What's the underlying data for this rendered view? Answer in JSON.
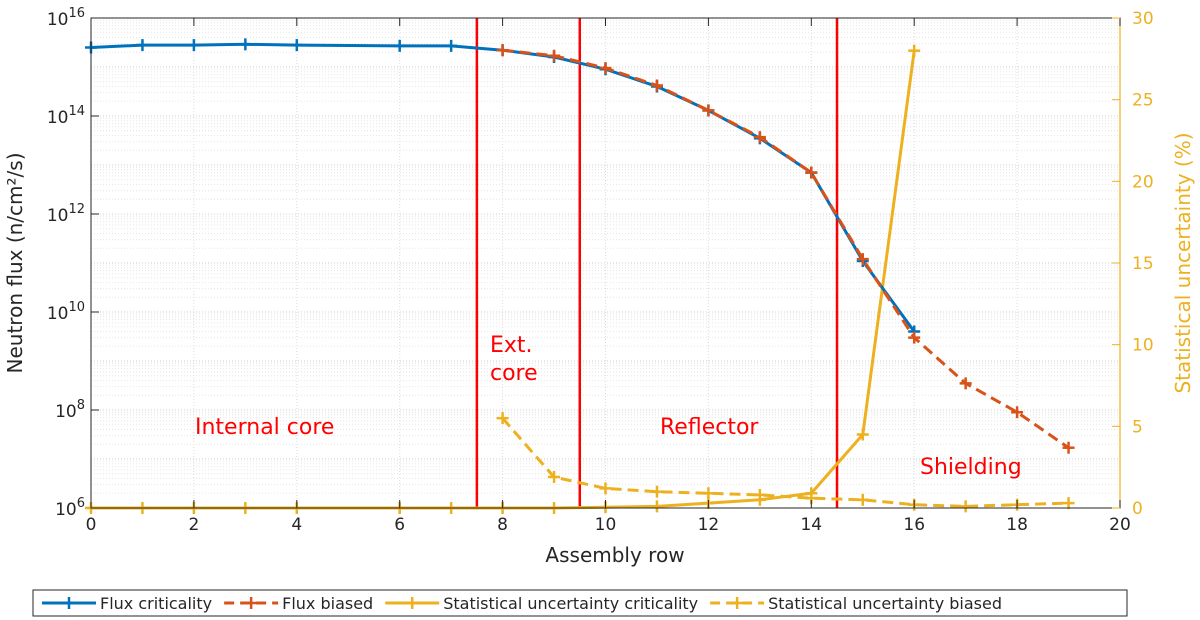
{
  "chart_data": {
    "type": "line",
    "xlabel": "Assembly row",
    "ylabel_left": "Neutron flux (n/cm²/s)",
    "ylabel_right": "Statistical uncertainty (%)",
    "xlim": [
      0,
      20
    ],
    "ylim_left": [
      1000000.0,
      1e+16
    ],
    "ylim_right": [
      0,
      30
    ],
    "yscale_left": "log",
    "grid": true,
    "x_ticks": [
      "0",
      "2",
      "4",
      "6",
      "8",
      "10",
      "12",
      "14",
      "16",
      "18",
      "20"
    ],
    "y_left_ticks": [
      {
        "base": "10",
        "exp": "6"
      },
      {
        "base": "10",
        "exp": "8"
      },
      {
        "base": "10",
        "exp": "10"
      },
      {
        "base": "10",
        "exp": "12"
      },
      {
        "base": "10",
        "exp": "14"
      },
      {
        "base": "10",
        "exp": "16"
      }
    ],
    "y_right_ticks": [
      "0",
      "5",
      "10",
      "15",
      "20",
      "25",
      "30"
    ],
    "region_boundaries": [
      7.5,
      9.5,
      14.5
    ],
    "regions": [
      {
        "label": "Internal core",
        "lines": [
          "Internal core"
        ]
      },
      {
        "label": "Ext. core",
        "lines": [
          "Ext.",
          "core"
        ]
      },
      {
        "label": "Reflector",
        "lines": [
          "Reflector"
        ]
      },
      {
        "label": "Shielding",
        "lines": [
          "Shielding"
        ]
      }
    ],
    "series": [
      {
        "name": "Flux criticality",
        "axis": "left",
        "color": "#0072BD",
        "style": "solid",
        "x": [
          0,
          1,
          2,
          3,
          4,
          6,
          7,
          8,
          9,
          10,
          11,
          12,
          13,
          14,
          15,
          16
        ],
        "y": [
          2500000000000000.0,
          2800000000000000.0,
          2800000000000000.0,
          2900000000000000.0,
          2800000000000000.0,
          2700000000000000.0,
          2700000000000000.0,
          2200000000000000.0,
          1600000000000000.0,
          900000000000000.0,
          400000000000000.0,
          130000000000000.0,
          35000000000000.0,
          7000000000000.0,
          110000000000.0,
          4000000000.0
        ]
      },
      {
        "name": "Flux biased",
        "axis": "left",
        "color": "#D95319",
        "style": "dashed",
        "x": [
          8,
          9,
          10,
          11,
          12,
          13,
          14,
          15,
          16,
          17,
          18,
          19
        ],
        "y": [
          2200000000000000.0,
          1700000000000000.0,
          950000000000000.0,
          420000000000000.0,
          130000000000000.0,
          37000000000000.0,
          7000000000000.0,
          120000000000.0,
          3000000000.0,
          350000000.0,
          90000000.0,
          17000000.0
        ]
      },
      {
        "name": "Statistical uncertainty criticality",
        "axis": "right",
        "color": "#EDB120",
        "style": "solid",
        "x": [
          0,
          1,
          2,
          3,
          4,
          6,
          7,
          8,
          9,
          10,
          11,
          12,
          13,
          14,
          15,
          16
        ],
        "y": [
          0,
          0,
          0,
          0,
          0,
          0,
          0,
          0,
          0,
          0.05,
          0.1,
          0.3,
          0.5,
          0.9,
          4.5,
          28
        ]
      },
      {
        "name": "Statistical uncertainty biased",
        "axis": "right",
        "color": "#EDB120",
        "style": "dashed",
        "x": [
          8,
          9,
          10,
          11,
          12,
          13,
          14,
          15,
          16,
          17,
          18,
          19
        ],
        "y": [
          5.5,
          1.9,
          1.2,
          1.0,
          0.9,
          0.8,
          0.6,
          0.5,
          0.2,
          0.1,
          0.2,
          0.3
        ]
      }
    ]
  }
}
